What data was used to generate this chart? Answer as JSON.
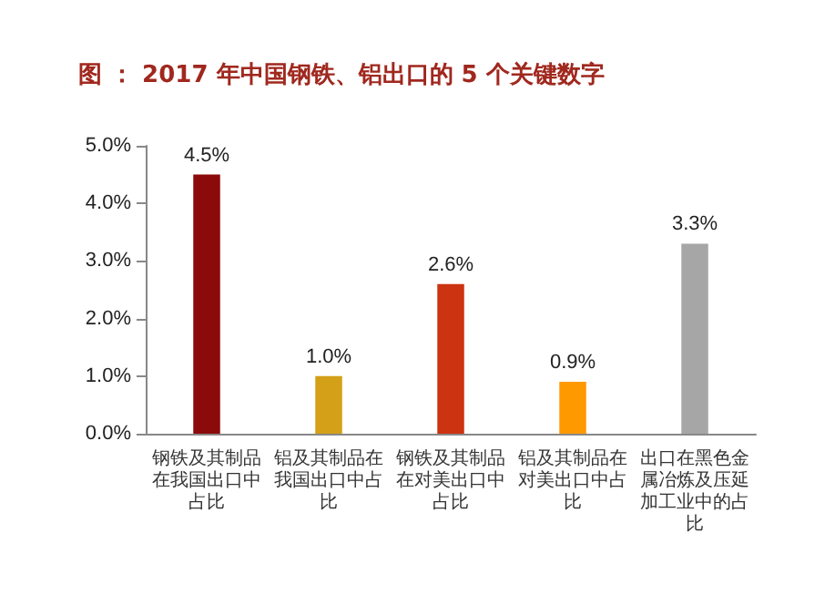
{
  "chart_data": {
    "type": "bar",
    "title": "图 ： 2017 年中国钢铁、铝出口的 5 个关键数字",
    "categories": [
      "钢铁及其制品在我国出口中占比",
      "铝及其制品在我国出口中占比",
      "钢铁及其制品在对美出口中占比",
      "铝及其制品在对美出口中占比",
      "出口在黑色金属冶炼及压延加工业中的占比"
    ],
    "values": [
      4.5,
      1.0,
      2.6,
      0.9,
      3.3
    ],
    "colors": [
      "#8b0a0a",
      "#d4a017",
      "#cc3311",
      "#ff9900",
      "#a6a6a6"
    ],
    "value_labels": [
      "4.5%",
      "1.0%",
      "2.6%",
      "0.9%",
      "3.3%"
    ],
    "ylim": [
      0,
      5
    ],
    "yticks": [
      {
        "value": 0,
        "label": "0.0%"
      },
      {
        "value": 1,
        "label": "1.0%"
      },
      {
        "value": 2,
        "label": "2.0%"
      },
      {
        "value": 3,
        "label": "3.0%"
      },
      {
        "value": 4,
        "label": "4.0%"
      },
      {
        "value": 5,
        "label": "5.0%"
      }
    ],
    "grid": false
  }
}
